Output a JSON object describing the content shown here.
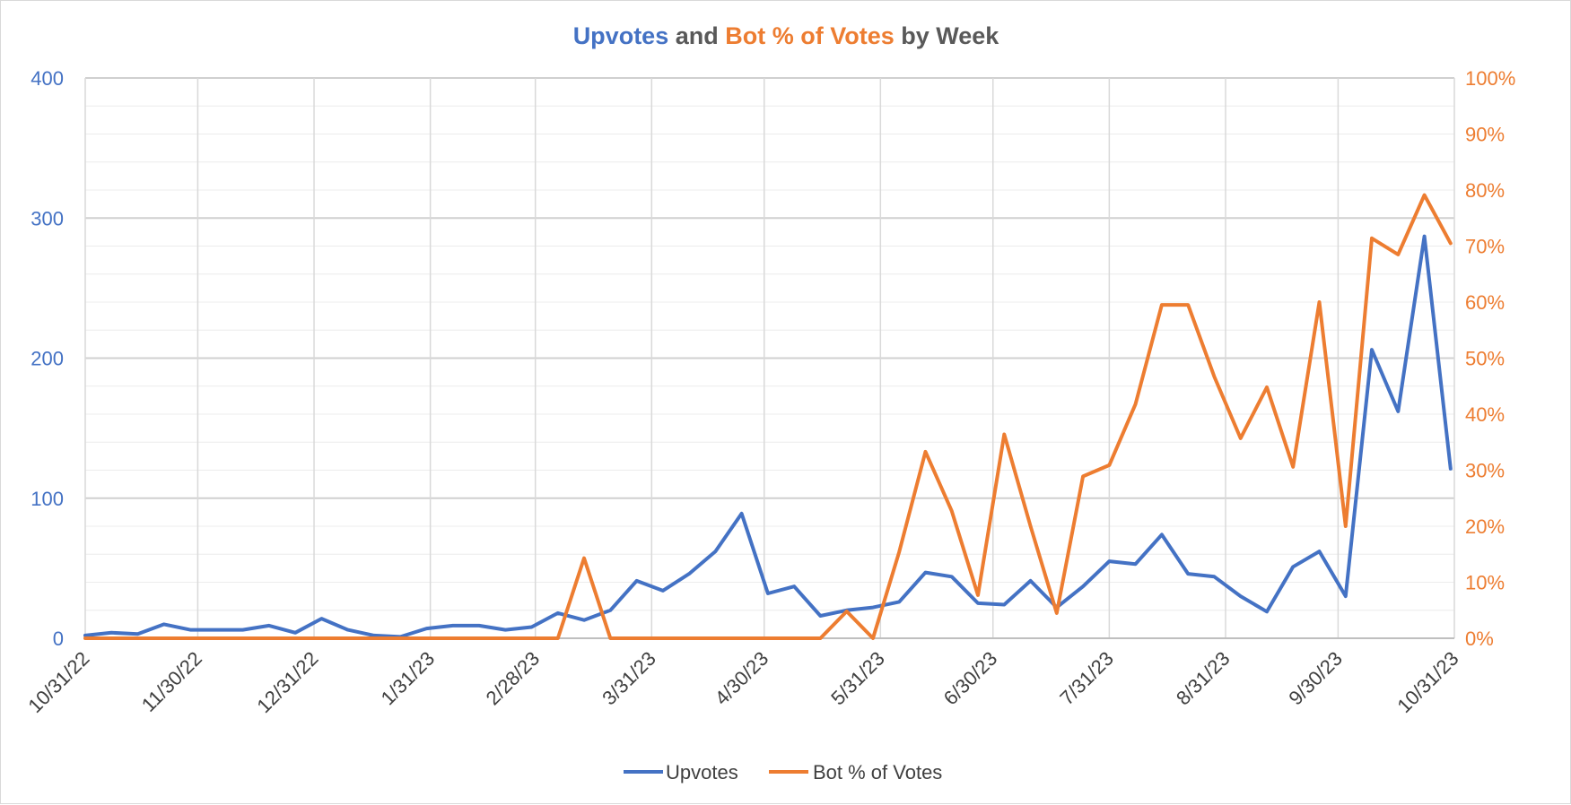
{
  "chart_data": {
    "type": "line",
    "title": {
      "part1": "Upvotes",
      "part2": " and ",
      "part3": "Bot % of Votes",
      "part4": " by Week"
    },
    "colors": {
      "upvotes": "#4472c4",
      "bot_pct": "#ed7d31",
      "title_neutral": "#595959",
      "gridline": "#d9d9d9"
    },
    "x_start_date": "2022-10-31",
    "x_tick_labels": [
      "10/31/22",
      "11/30/22",
      "12/31/22",
      "1/31/23",
      "2/28/23",
      "3/31/23",
      "4/30/23",
      "5/31/23",
      "6/30/23",
      "7/31/23",
      "8/31/23",
      "9/30/23",
      "10/31/23"
    ],
    "x_tick_days": [
      0,
      30,
      61,
      92,
      120,
      151,
      181,
      212,
      242,
      273,
      304,
      334,
      365
    ],
    "y_left": {
      "min": 0,
      "max": 400,
      "ticks": [
        0,
        100,
        200,
        300,
        400
      ]
    },
    "y_right": {
      "min": 0,
      "max": 1,
      "ticks": [
        "0%",
        "10%",
        "20%",
        "30%",
        "40%",
        "50%",
        "60%",
        "70%",
        "80%",
        "90%",
        "100%"
      ]
    },
    "grid": true,
    "legend_position": "bottom",
    "series": [
      {
        "name": "Upvotes",
        "axis": "left",
        "days": [
          0,
          7,
          14,
          21,
          28,
          35,
          42,
          49,
          56,
          63,
          70,
          77,
          84,
          91,
          98,
          105,
          112,
          119,
          126,
          133,
          140,
          147,
          154,
          161,
          168,
          175,
          182,
          189,
          196,
          203,
          210,
          217,
          224,
          231,
          238,
          245,
          252,
          259,
          266,
          273,
          280,
          287,
          294,
          301,
          308,
          315,
          322,
          329,
          336,
          343,
          350,
          357,
          364
        ],
        "values": [
          2,
          4,
          3,
          10,
          6,
          6,
          6,
          9,
          4,
          14,
          6,
          2,
          1,
          7,
          9,
          9,
          6,
          8,
          18,
          13,
          20,
          41,
          34,
          46,
          62,
          89,
          32,
          37,
          16,
          20,
          22,
          26,
          47,
          44,
          25,
          24,
          41,
          22,
          37,
          55,
          53,
          74,
          46,
          44,
          30,
          19,
          51,
          62,
          30,
          206,
          162,
          287,
          121
        ]
      },
      {
        "name": "Bot % of Votes",
        "axis": "right",
        "days": [
          0,
          7,
          14,
          21,
          28,
          35,
          42,
          49,
          56,
          63,
          70,
          77,
          84,
          91,
          98,
          105,
          112,
          119,
          126,
          133,
          140,
          147,
          154,
          161,
          168,
          175,
          182,
          189,
          196,
          203,
          210,
          217,
          224,
          231,
          238,
          245,
          252,
          259,
          266,
          273,
          280,
          287,
          294,
          301,
          308,
          315,
          322,
          329,
          336,
          343,
          350,
          357,
          364
        ],
        "values": [
          0,
          0,
          0,
          0,
          0,
          0,
          0,
          0,
          0,
          0,
          0,
          0,
          0,
          0,
          0,
          0,
          0,
          0,
          0,
          0.143,
          0,
          0,
          0,
          0,
          0,
          0,
          0,
          0,
          0,
          0.048,
          0,
          0.154,
          0.333,
          0.227,
          0.077,
          0.364,
          0.2,
          0.045,
          0.289,
          0.309,
          0.418,
          0.595,
          0.595,
          0.467,
          0.357,
          0.448,
          0.306,
          0.6,
          0.2,
          0.714,
          0.685,
          0.791,
          0.705
        ]
      }
    ]
  }
}
